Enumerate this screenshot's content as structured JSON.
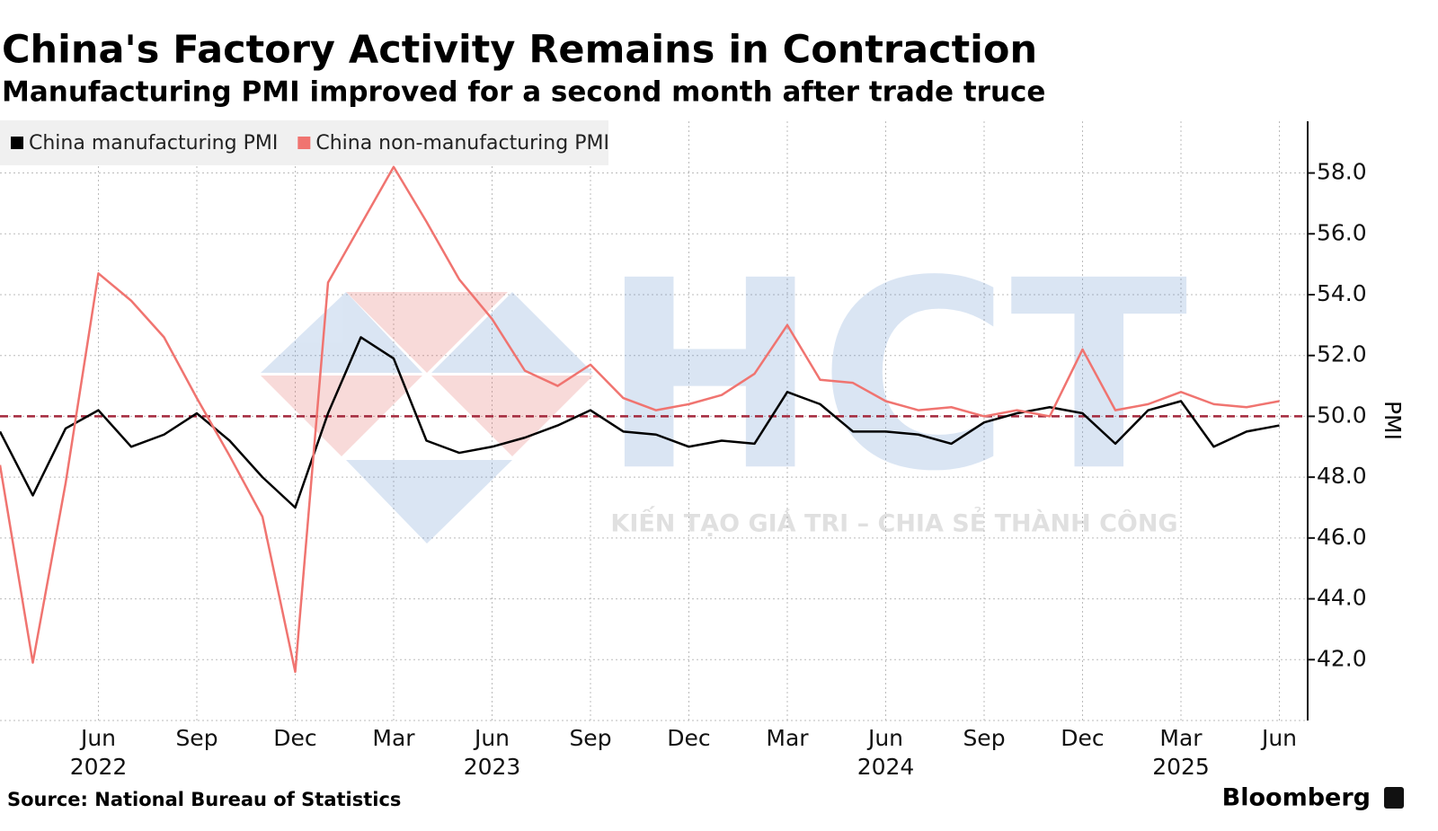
{
  "chart_data": {
    "type": "line",
    "title": "China's Factory Activity Remains in Contraction",
    "subtitle": "Manufacturing PMI improved for a second month after trade truce",
    "source": "Source: National Bureau of Statistics",
    "brand": "Bloomberg",
    "y_axis_label": "PMI",
    "watermark": {
      "logo": "HCT",
      "tagline": "KIẾN TẠO GIÁ TRI – CHIA SẺ THÀNH CÔNG"
    },
    "x": [
      "2022-03",
      "2022-04",
      "2022-05",
      "2022-06",
      "2022-07",
      "2022-08",
      "2022-09",
      "2022-10",
      "2022-11",
      "2022-12",
      "2023-01",
      "2023-02",
      "2023-03",
      "2023-04",
      "2023-05",
      "2023-06",
      "2023-07",
      "2023-08",
      "2023-09",
      "2023-10",
      "2023-11",
      "2023-12",
      "2024-01",
      "2024-02",
      "2024-03",
      "2024-04",
      "2024-05",
      "2024-06",
      "2024-07",
      "2024-08",
      "2024-09",
      "2024-10",
      "2024-11",
      "2024-12",
      "2025-01",
      "2025-02",
      "2025-03",
      "2025-04",
      "2025-05",
      "2025-06"
    ],
    "xticks": [
      {
        "value": "2022-06",
        "label": "Jun"
      },
      {
        "value": "2022-09",
        "label": "Sep"
      },
      {
        "value": "2022-12",
        "label": "Dec"
      },
      {
        "value": "2023-03",
        "label": "Mar"
      },
      {
        "value": "2023-06",
        "label": "Jun"
      },
      {
        "value": "2023-09",
        "label": "Sep"
      },
      {
        "value": "2023-12",
        "label": "Dec"
      },
      {
        "value": "2024-03",
        "label": "Mar"
      },
      {
        "value": "2024-06",
        "label": "Jun"
      },
      {
        "value": "2024-09",
        "label": "Sep"
      },
      {
        "value": "2024-12",
        "label": "Dec"
      },
      {
        "value": "2025-03",
        "label": "Mar"
      },
      {
        "value": "2025-06",
        "label": "Jun"
      }
    ],
    "xticks_years": [
      {
        "value": "2022-06",
        "label": "2022"
      },
      {
        "value": "2023-06",
        "label": "2023"
      },
      {
        "value": "2024-06",
        "label": "2024"
      },
      {
        "value": "2025-03",
        "label": "2025"
      }
    ],
    "series": [
      {
        "name": "China manufacturing PMI",
        "color": "#000000",
        "values": [
          49.5,
          47.4,
          49.6,
          50.2,
          49.0,
          49.4,
          50.1,
          49.2,
          48.0,
          47.0,
          50.1,
          52.6,
          51.9,
          49.2,
          48.8,
          49.0,
          49.3,
          49.7,
          50.2,
          49.5,
          49.4,
          49.0,
          49.2,
          49.1,
          50.8,
          50.4,
          49.5,
          49.5,
          49.4,
          49.1,
          49.8,
          50.1,
          50.3,
          50.1,
          49.1,
          50.2,
          50.5,
          49.0,
          49.5,
          49.7
        ]
      },
      {
        "name": "China non-manufacturing PMI",
        "color": "#f07470",
        "values": [
          48.4,
          41.9,
          47.8,
          54.7,
          53.8,
          52.6,
          50.6,
          48.7,
          46.7,
          41.6,
          54.4,
          56.3,
          58.2,
          56.4,
          54.5,
          53.2,
          51.5,
          51.0,
          51.7,
          50.6,
          50.2,
          50.4,
          50.7,
          51.4,
          53.0,
          51.2,
          51.1,
          50.5,
          50.2,
          50.3,
          50.0,
          50.2,
          50.0,
          52.2,
          50.2,
          50.4,
          50.8,
          50.4,
          50.3,
          50.5
        ]
      }
    ],
    "reference_line": 50,
    "reference_color": "#a3283c",
    "ylim": [
      40,
      59.7
    ],
    "yticks": [
      {
        "value": 42,
        "label": "42.0"
      },
      {
        "value": 44,
        "label": "44.0"
      },
      {
        "value": 46,
        "label": "46.0"
      },
      {
        "value": 48,
        "label": "48.0"
      },
      {
        "value": 50,
        "label": "50.0"
      },
      {
        "value": 52,
        "label": "52.0"
      },
      {
        "value": 54,
        "label": "54.0"
      },
      {
        "value": 56,
        "label": "56.0"
      },
      {
        "value": 58,
        "label": "58.0"
      }
    ],
    "grid": true,
    "legend": "top-left"
  }
}
